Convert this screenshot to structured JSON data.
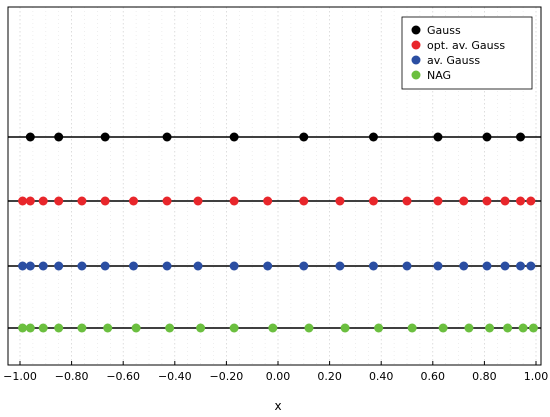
{
  "chart_data": {
    "type": "scatter",
    "title": "",
    "xlabel": "x",
    "ylabel": "",
    "xlim": [
      -1,
      1
    ],
    "xticks": [
      -1.0,
      -0.8,
      -0.6,
      -0.4,
      -0.2,
      0.0,
      0.2,
      0.4,
      0.6,
      0.8,
      1.0
    ],
    "xtick_labels": [
      "−1.00",
      "−0.80",
      "−0.60",
      "−0.40",
      "−0.20",
      "0.00",
      "0.20",
      "0.40",
      "0.60",
      "0.80",
      "1.00"
    ],
    "grid": true,
    "legend_position": "top-right",
    "series": [
      {
        "name": "Gauss",
        "color": "#000000",
        "x": [
          -0.96,
          -0.85,
          -0.67,
          -0.43,
          -0.17,
          0.1,
          0.37,
          0.62,
          0.81,
          0.94
        ]
      },
      {
        "name": "opt. av. Gauss",
        "color": "#e8262b",
        "x": [
          -0.99,
          -0.96,
          -0.91,
          -0.85,
          -0.76,
          -0.67,
          -0.56,
          -0.43,
          -0.31,
          -0.17,
          -0.04,
          0.1,
          0.24,
          0.37,
          0.5,
          0.62,
          0.72,
          0.81,
          0.88,
          0.94,
          0.98
        ]
      },
      {
        "name": "av. Gauss",
        "color": "#2b4ea2",
        "x": [
          -0.99,
          -0.96,
          -0.91,
          -0.85,
          -0.76,
          -0.67,
          -0.56,
          -0.43,
          -0.31,
          -0.17,
          -0.04,
          0.1,
          0.24,
          0.37,
          0.5,
          0.62,
          0.72,
          0.81,
          0.88,
          0.94,
          0.98
        ]
      },
      {
        "name": "NAG",
        "color": "#6bbf3f",
        "x": [
          -0.99,
          -0.96,
          -0.91,
          -0.85,
          -0.76,
          -0.66,
          -0.55,
          -0.42,
          -0.3,
          -0.17,
          -0.02,
          0.12,
          0.26,
          0.39,
          0.52,
          0.64,
          0.74,
          0.82,
          0.89,
          0.95,
          0.99
        ]
      }
    ]
  }
}
